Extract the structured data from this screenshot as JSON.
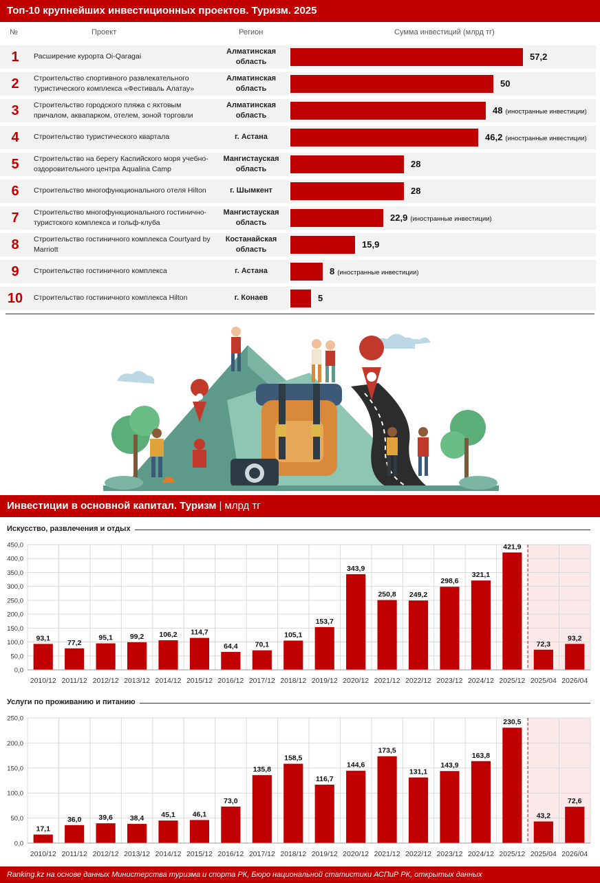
{
  "top_title": "Топ-10 крупнейших инвестиционных проектов. Туризм. 2025",
  "table": {
    "headers": {
      "num": "№",
      "project": "Проект",
      "region": "Регион",
      "amount": "Сумма инвестиций (млрд тг)"
    },
    "foreign_note": "(иностранные инвестиции)",
    "rows": [
      {
        "rank": "1",
        "project": "Расширение курорта Oi-Qaragai",
        "region": "Алматинская область",
        "value": 57.2,
        "value_label": "57,2",
        "foreign": false
      },
      {
        "rank": "2",
        "project": "Строительство спортивного развлекательного туристического комплекса «Фестиваль Алатау»",
        "region": "Алматинская область",
        "value": 50,
        "value_label": "50",
        "foreign": false
      },
      {
        "rank": "3",
        "project": "Строительство городского пляжа с яхтовым причалом, аквапарком, отелем, зоной торговли",
        "region": "Алматинская область",
        "value": 48,
        "value_label": "48",
        "foreign": true
      },
      {
        "rank": "4",
        "project": "Строительство туристического квартала",
        "region": "г. Астана",
        "value": 46.2,
        "value_label": "46,2",
        "foreign": true
      },
      {
        "rank": "5",
        "project": "Строительство на берегу Каспийского моря учебно-оздоровительного центра Aqualina Camp",
        "region": "Мангистауская область",
        "value": 28,
        "value_label": "28",
        "foreign": false
      },
      {
        "rank": "6",
        "project": "Строительство многофункционального отеля Hilton",
        "region": "г. Шымкент",
        "value": 28,
        "value_label": "28",
        "foreign": false
      },
      {
        "rank": "7",
        "project": "Строительство многофункционального гостинично-туристского комплекса и гольф-клуба",
        "region": "Мангистауская область",
        "value": 22.9,
        "value_label": "22,9",
        "foreign": true
      },
      {
        "rank": "8",
        "project": "Строительство гостиничного комплекса Courtyard by Marriott",
        "region": "Костанайская область",
        "value": 15.9,
        "value_label": "15,9",
        "foreign": false
      },
      {
        "rank": "9",
        "project": "Строительство гостиничного комплекса",
        "region": "г. Астана",
        "value": 8,
        "value_label": "8",
        "foreign": true
      },
      {
        "rank": "10",
        "project": "Строительство гостиничного комплекса Hilton",
        "region": "г. Конаев",
        "value": 5,
        "value_label": "5",
        "foreign": false
      }
    ]
  },
  "section2_title": "Инвестиции в основной капитал. Туризм",
  "section2_sep": "|",
  "section2_unit": "млрд тг",
  "chart_data": [
    {
      "type": "bar",
      "title": "Искусство, развлечения и отдых",
      "categories": [
        "2010/12",
        "2011/12",
        "2012/12",
        "2013/12",
        "2014/12",
        "2015/12",
        "2016/12",
        "2017/12",
        "2018/12",
        "2019/12",
        "2020/12",
        "2021/12",
        "2022/12",
        "2023/12",
        "2024/12",
        "2025/12",
        "2025/04",
        "2026/04"
      ],
      "values": [
        93.1,
        77.2,
        95.1,
        99.2,
        106.2,
        114.7,
        64.4,
        70.1,
        105.1,
        153.7,
        343.9,
        250.8,
        249.2,
        298.6,
        321.1,
        421.9,
        72.3,
        93.2
      ],
      "value_labels": [
        "93,1",
        "77,2",
        "95,1",
        "99,2",
        "106,2",
        "114,7",
        "64,4",
        "70,1",
        "105,1",
        "153,7",
        "343,9",
        "250,8",
        "249,2",
        "298,6",
        "321,1",
        "421,9",
        "72,3",
        "93,2"
      ],
      "yticks": [
        "0,0",
        "50,0",
        "100,0",
        "150,0",
        "200,0",
        "250,0",
        "300,0",
        "350,0",
        "400,0",
        "450,0"
      ],
      "ylim": [
        0,
        450
      ],
      "grid": true
    },
    {
      "type": "bar",
      "title": "Услуги по проживанию и питанию",
      "categories": [
        "2010/12",
        "2011/12",
        "2012/12",
        "2013/12",
        "2014/12",
        "2015/12",
        "2016/12",
        "2017/12",
        "2018/12",
        "2019/12",
        "2020/12",
        "2021/12",
        "2022/12",
        "2023/12",
        "2024/12",
        "2025/12",
        "2025/04",
        "2026/04"
      ],
      "values": [
        17.1,
        36.0,
        39.6,
        38.4,
        45.1,
        46.1,
        73.0,
        135.8,
        158.5,
        116.7,
        144.6,
        173.5,
        131.1,
        143.9,
        163.8,
        230.5,
        43.2,
        72.6
      ],
      "value_labels": [
        "17,1",
        "36,0",
        "39,6",
        "38,4",
        "45,1",
        "46,1",
        "73,0",
        "135,8",
        "158,5",
        "116,7",
        "144,6",
        "173,5",
        "131,1",
        "143,9",
        "163,8",
        "230,5",
        "43,2",
        "72,6"
      ],
      "yticks": [
        "0,0",
        "50,0",
        "100,0",
        "150,0",
        "200,0",
        "250,0"
      ],
      "ylim": [
        0,
        250
      ],
      "grid": true
    }
  ],
  "colors": {
    "accent": "#c00000",
    "row_bg": "#f2f2f2",
    "highlight_bg": "#fbe9ea"
  },
  "footer": "Ranking.kz на основе данных Министерства туризма и спорта РК, Бюро национальной статистики АСПиР РК, открытых данных"
}
